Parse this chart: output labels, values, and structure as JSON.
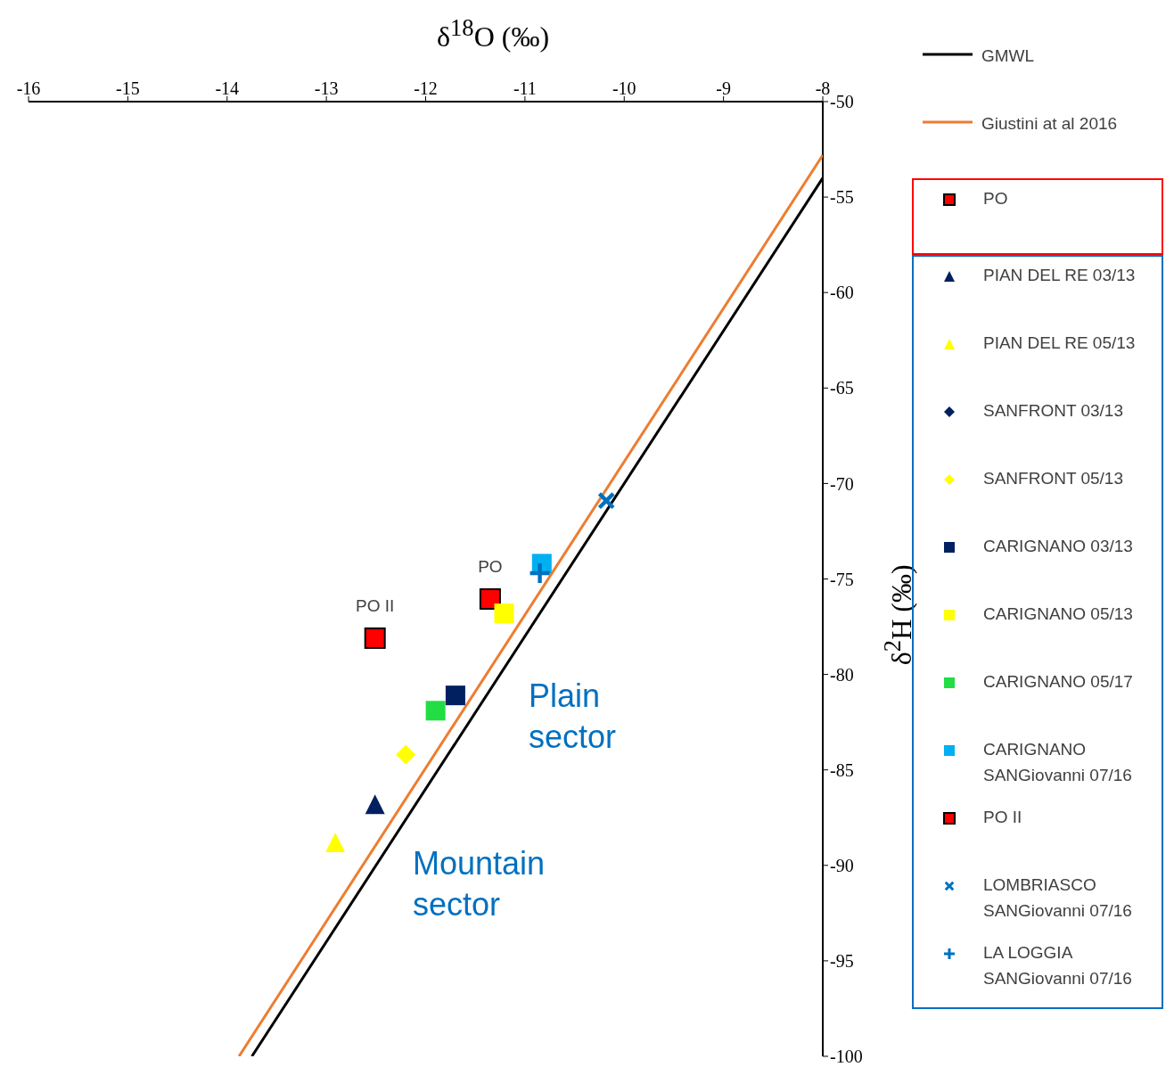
{
  "chart_data": {
    "type": "scatter",
    "xlabel": "δ$^{18}$O (‰)",
    "ylabel": "δ$^{2}$H (‰)",
    "xlim": [
      -16,
      -8
    ],
    "xticks": [
      -16,
      -15,
      -14,
      -13,
      -12,
      -11,
      -10,
      -9,
      -8
    ],
    "ylim": [
      -100,
      -50
    ],
    "yticks": [
      -100,
      -95,
      -90,
      -85,
      -80,
      -75,
      -70,
      -65,
      -60,
      -55,
      -50
    ],
    "grid": false,
    "legend": "right",
    "series": [
      {
        "name": "GMWL",
        "type": "line",
        "color": "#000000",
        "x": [
          -13.75,
          -8
        ],
        "values": [
          -100,
          -54
        ]
      },
      {
        "name": "Giustini at al 2016",
        "type": "line",
        "color": "#ed7d31",
        "x": [
          -13.88,
          -8
        ],
        "values": [
          -100,
          -52.8
        ]
      },
      {
        "name": "PO",
        "color": "#ff0000",
        "marker": "square",
        "x": [
          -11.35
        ],
        "values": [
          -76.05
        ]
      },
      {
        "name": "PIAN DEL RE 03/13",
        "color": "#002060",
        "marker": "triangle",
        "x": [
          -12.51
        ],
        "values": [
          -86.8
        ]
      },
      {
        "name": "PIAN DEL RE 05/13",
        "color": "#ffff00",
        "marker": "triangle",
        "x": [
          -12.91
        ],
        "values": [
          -88.8
        ]
      },
      {
        "name": "SANFRONT 03/13",
        "color": "#002060",
        "marker": "diamond",
        "x": [
          null
        ],
        "values": [
          null
        ]
      },
      {
        "name": "SANFRONT 05/13",
        "color": "#ffff00",
        "marker": "diamond",
        "x": [
          -12.2
        ],
        "values": [
          -84.2
        ]
      },
      {
        "name": "CARIGNANO 03/13",
        "color": "#002060",
        "marker": "square",
        "x": [
          -11.7
        ],
        "values": [
          -81.1
        ]
      },
      {
        "name": "CARIGNANO 05/13",
        "color": "#ffff00",
        "marker": "square",
        "x": [
          -11.21
        ],
        "values": [
          -76.8
        ]
      },
      {
        "name": "CARIGNANO 05/17",
        "color": "#22dd44",
        "marker": "square",
        "x": [
          -11.9
        ],
        "values": [
          -81.9
        ]
      },
      {
        "name": "CARIGNANO SANGiovanni 07/16",
        "color": "#00b0f0",
        "marker": "square",
        "x": [
          -10.83
        ],
        "values": [
          -74.2
        ]
      },
      {
        "name": "PO II",
        "color": "#ff0000",
        "marker": "square",
        "x": [
          -12.51
        ],
        "values": [
          -78.1
        ]
      },
      {
        "name": "LOMBRIASCO SANGiovanni 07/16",
        "color": "#0070c0",
        "marker": "x",
        "x": [
          -10.18
        ],
        "values": [
          -70.9
        ]
      },
      {
        "name": "LA LOGGIA SANGiovanni 07/16",
        "color": "#0070c0",
        "marker": "cross",
        "x": [
          -10.85
        ],
        "values": [
          -74.7
        ]
      }
    ],
    "annotations": [
      {
        "text": "PO",
        "x": -11.35,
        "y": -76.05
      },
      {
        "text": "PO II",
        "x": -12.51,
        "y": -78.1
      },
      "Plain sector",
      "Mountain sector"
    ]
  }
}
